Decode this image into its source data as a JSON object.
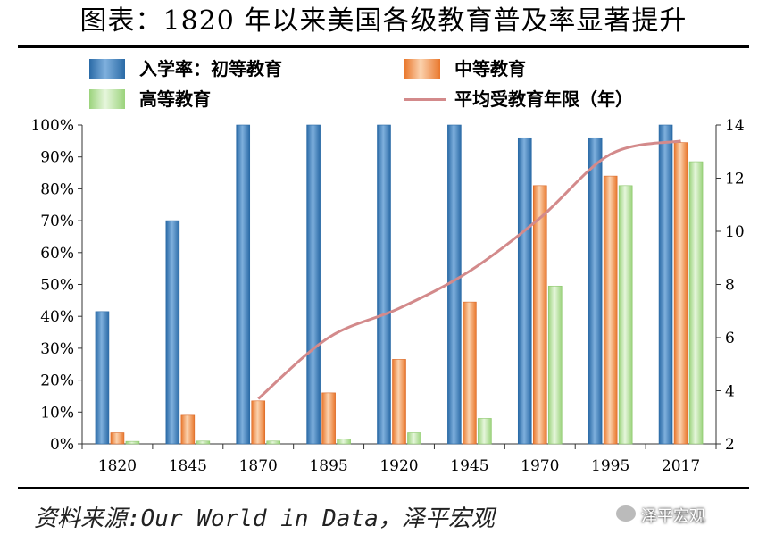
{
  "title": "图表：1820 年以来美国各级教育普及率显著提升",
  "source": "资料来源:Our World in Data，泽平宏观",
  "watermark": "泽平宏观",
  "legend": {
    "primary": "入学率：初等教育",
    "secondary": "中等教育",
    "tertiary": "高等教育",
    "years": "平均受教育年限（年）"
  },
  "colors": {
    "primary": "#3a7bbf",
    "secondary": "#f08a44",
    "tertiary": "#b5e39b",
    "line": "#d38a8b"
  },
  "chart_data": {
    "type": "bar",
    "categories": [
      "1820",
      "1845",
      "1870",
      "1895",
      "1920",
      "1945",
      "1970",
      "1995",
      "2017"
    ],
    "series": [
      {
        "name": "入学率：初等教育",
        "values": [
          41.5,
          70,
          100,
          100,
          100,
          100,
          96,
          96,
          100
        ]
      },
      {
        "name": "中等教育",
        "values": [
          3.5,
          9,
          13.5,
          16,
          26.5,
          44.5,
          81,
          84,
          94.5
        ]
      },
      {
        "name": "高等教育",
        "values": [
          0.8,
          0.9,
          0.9,
          1.5,
          3.5,
          8,
          49.5,
          81,
          88.5
        ]
      }
    ],
    "line_series": {
      "name": "平均受教育年限（年）",
      "x": [
        "1870",
        "1895",
        "1920",
        "1945",
        "1970",
        "1995",
        "2017"
      ],
      "values": [
        3.7,
        6.0,
        7.1,
        8.5,
        10.5,
        12.9,
        13.4
      ]
    },
    "ylim": [
      0,
      100
    ],
    "y_ticks": [
      "0%",
      "10%",
      "20%",
      "30%",
      "40%",
      "50%",
      "60%",
      "70%",
      "80%",
      "90%",
      "100%"
    ],
    "y2lim": [
      2,
      14
    ],
    "y2_ticks": [
      "2",
      "4",
      "6",
      "8",
      "10",
      "12",
      "14"
    ],
    "grid": false,
    "legend_position": "top"
  }
}
